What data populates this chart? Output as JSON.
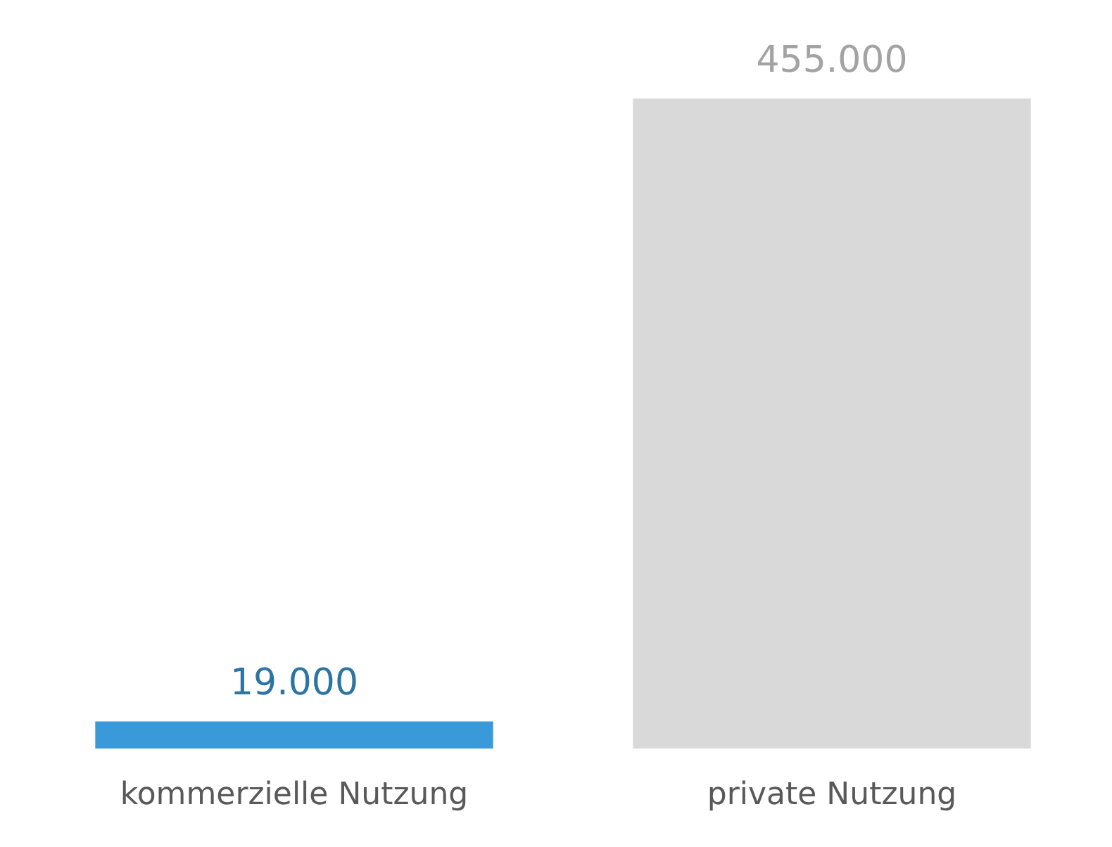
{
  "chart_data": {
    "type": "bar",
    "categories": [
      "kommerzielle Nutzung",
      "private Nutzung"
    ],
    "values": [
      19000,
      455000
    ],
    "colors": [
      "#3a9ad9",
      "#d9d9d9"
    ],
    "value_labels": [
      "19.000",
      "455.000"
    ]
  }
}
